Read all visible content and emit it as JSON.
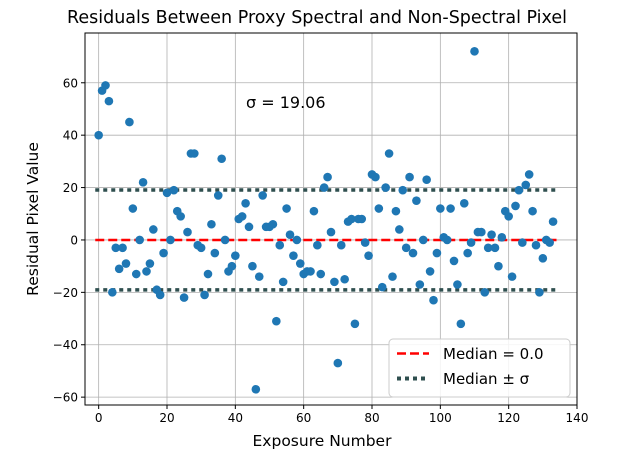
{
  "chart_data": {
    "type": "scatter",
    "title": "Residuals Between Proxy Spectral and Non-Spectral Pixel",
    "xlabel": "Exposure Number",
    "ylabel": "Residual Pixel Value",
    "xlim": [
      -4,
      140
    ],
    "ylim": [
      -63,
      79
    ],
    "xticks": [
      0,
      20,
      40,
      60,
      80,
      100,
      120,
      140
    ],
    "yticks": [
      -60,
      -40,
      -20,
      0,
      20,
      40,
      60
    ],
    "grid": true,
    "annotation": "σ = 19.06",
    "legend": {
      "position": "bottom-right",
      "entries": [
        "Median = 0.0",
        "Median ± σ"
      ]
    },
    "median": 0.0,
    "sigma": 19.06,
    "colors": {
      "points": "#1f77b4",
      "median_line": "#ff0000",
      "sigma_lines": "#2f4f4f",
      "grid": "#b0b0b0"
    },
    "series": [
      {
        "name": "Residuals",
        "x": [
          0,
          1,
          2,
          3,
          4,
          5,
          6,
          7,
          8,
          9,
          10,
          11,
          12,
          13,
          14,
          15,
          16,
          17,
          18,
          19,
          20,
          21,
          22,
          23,
          24,
          25,
          26,
          27,
          28,
          29,
          30,
          31,
          32,
          33,
          34,
          35,
          36,
          37,
          38,
          39,
          40,
          41,
          42,
          43,
          44,
          45,
          46,
          47,
          48,
          49,
          50,
          51,
          52,
          53,
          54,
          55,
          56,
          57,
          58,
          59,
          60,
          61,
          62,
          63,
          64,
          65,
          66,
          67,
          68,
          69,
          70,
          71,
          72,
          73,
          74,
          75,
          76,
          77,
          78,
          79,
          80,
          81,
          82,
          83,
          84,
          85,
          86,
          87,
          88,
          89,
          90,
          91,
          92,
          93,
          94,
          95,
          96,
          97,
          98,
          99,
          100,
          101,
          102,
          103,
          104,
          105,
          106,
          107,
          108,
          109,
          110,
          111,
          112,
          113,
          114,
          115,
          116,
          117,
          118,
          119,
          120,
          121,
          122,
          123,
          124,
          125,
          126,
          127,
          128,
          129,
          130,
          131,
          132,
          133
        ],
        "y": [
          40,
          57,
          59,
          53,
          -20,
          -3,
          -11,
          -3,
          -9,
          45,
          12,
          -13,
          0,
          22,
          -12,
          -9,
          4,
          -19,
          -21,
          -5,
          18,
          0,
          19,
          11,
          9,
          -22,
          3,
          33,
          33,
          -2,
          -3,
          -21,
          -13,
          6,
          -5,
          17,
          31,
          0,
          -12,
          -10,
          -6,
          8,
          9,
          14,
          5,
          -10,
          -57,
          -14,
          17,
          5,
          5,
          6,
          -31,
          -2,
          -16,
          12,
          2,
          -6,
          0,
          -9,
          -13,
          -12,
          -12,
          11,
          -2,
          -13,
          20,
          24,
          3,
          -16,
          -47,
          -2,
          -15,
          7,
          8,
          -32,
          8,
          8,
          -1,
          -6,
          25,
          24,
          12,
          -18,
          20,
          33,
          -14,
          11,
          4,
          19,
          -3,
          24,
          -5,
          15,
          -17,
          0,
          23,
          -12,
          -23,
          -5,
          12,
          1,
          0,
          12,
          -8,
          -17,
          -32,
          14,
          -5,
          -1,
          72,
          3,
          3,
          -20,
          -3,
          2,
          -3,
          -10,
          1,
          11,
          9,
          -14,
          13,
          19,
          -1,
          21,
          25,
          11,
          -2,
          -20,
          -7,
          0,
          -1,
          7
        ]
      }
    ]
  }
}
